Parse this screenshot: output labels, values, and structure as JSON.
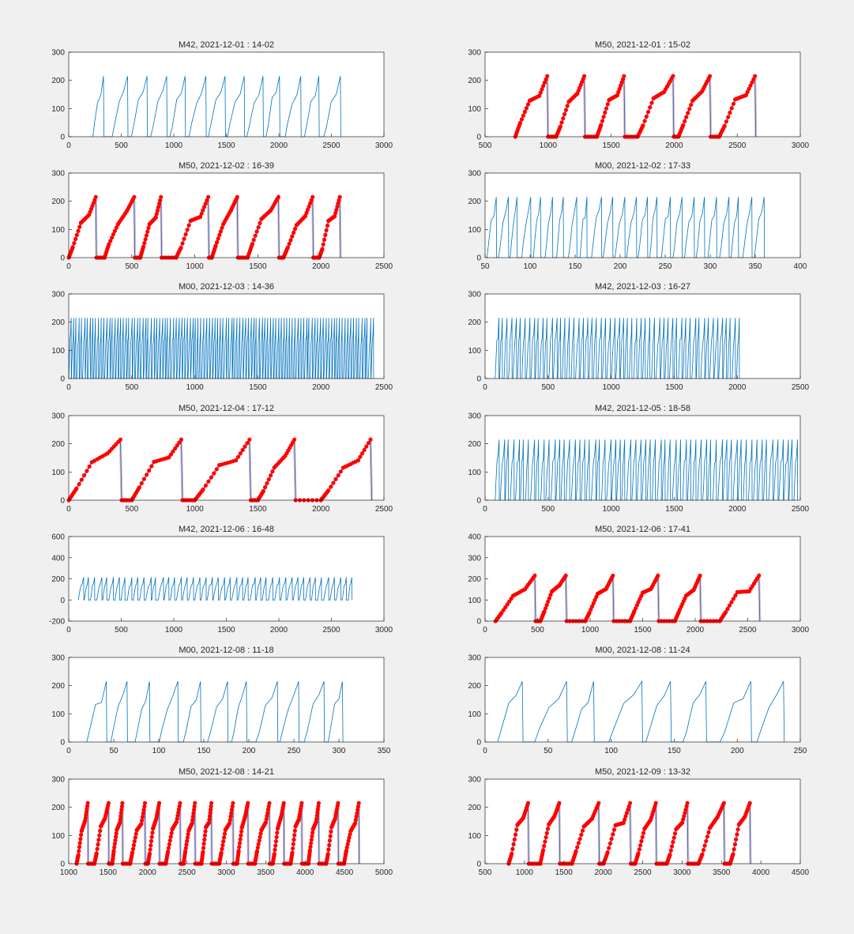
{
  "chart_data": [
    {
      "type": "line",
      "title": "M42, 2021-12-01 : 14-02",
      "xlim": [
        0,
        3000
      ],
      "ylim": [
        0,
        300
      ],
      "xticks": [
        0,
        500,
        1000,
        1500,
        2000,
        2500,
        3000
      ],
      "yticks": [
        0,
        100,
        200,
        300
      ],
      "xrange": [
        230,
        2610
      ],
      "ymax": 215,
      "cycles": 13,
      "highlight": false
    },
    {
      "type": "line",
      "title": "M50, 2021-12-01 : 15-02",
      "xlim": [
        500,
        3000
      ],
      "ylim": [
        0,
        300
      ],
      "xticks": [
        500,
        1000,
        1500,
        2000,
        2500,
        3000
      ],
      "yticks": [
        0,
        100,
        200,
        300
      ],
      "xrange": [
        740,
        2680
      ],
      "ymax": 215,
      "cycles": 6,
      "highlight": true
    },
    {
      "type": "line",
      "title": "M50, 2021-12-02 : 16-39",
      "xlim": [
        0,
        2500
      ],
      "ylim": [
        0,
        300
      ],
      "xticks": [
        0,
        500,
        1000,
        1500,
        2000,
        2500
      ],
      "yticks": [
        0,
        100,
        200,
        300
      ],
      "xrange": [
        0,
        2270
      ],
      "ymax": 215,
      "cycles": 8,
      "highlight": true
    },
    {
      "type": "line",
      "title": "M00, 2021-12-02 : 17-33",
      "xlim": [
        50,
        400
      ],
      "ylim": [
        0,
        300
      ],
      "xticks": [
        50,
        100,
        150,
        200,
        250,
        300,
        350,
        400
      ],
      "yticks": [
        0,
        100,
        200,
        300
      ],
      "xrange": [
        52,
        362
      ],
      "ymax": 215,
      "cycles": 24,
      "highlight": false
    },
    {
      "type": "line",
      "title": "M00, 2021-12-03 : 14-36",
      "xlim": [
        0,
        2500
      ],
      "ylim": [
        0,
        300
      ],
      "xticks": [
        0,
        500,
        1000,
        1500,
        2000,
        2500
      ],
      "yticks": [
        0,
        100,
        200,
        300
      ],
      "xrange": [
        0,
        2420
      ],
      "ymax": 215,
      "cycles": 110,
      "highlight": false
    },
    {
      "type": "line",
      "title": "M42, 2021-12-03 : 16-27",
      "xlim": [
        0,
        2500
      ],
      "ylim": [
        0,
        300
      ],
      "xticks": [
        0,
        500,
        1000,
        1500,
        2000,
        2500
      ],
      "yticks": [
        0,
        100,
        200,
        300
      ],
      "xrange": [
        80,
        2030
      ],
      "ymax": 215,
      "cycles": 55,
      "highlight": false
    },
    {
      "type": "line",
      "title": "M50, 2021-12-04 : 17-12",
      "xlim": [
        0,
        2500
      ],
      "ylim": [
        0,
        300
      ],
      "xticks": [
        0,
        500,
        1000,
        1500,
        2000,
        2500
      ],
      "yticks": [
        0,
        100,
        200,
        300
      ],
      "xrange": [
        0,
        2500
      ],
      "ymax": 215,
      "cycles": 5,
      "highlight": true
    },
    {
      "type": "line",
      "title": "M42, 2021-12-05 : 18-58",
      "xlim": [
        0,
        2500
      ],
      "ylim": [
        0,
        300
      ],
      "xticks": [
        0,
        500,
        1000,
        1500,
        2000,
        2500
      ],
      "yticks": [
        0,
        100,
        200,
        300
      ],
      "xrange": [
        80,
        2490
      ],
      "ymax": 215,
      "cycles": 60,
      "highlight": false
    },
    {
      "type": "line",
      "title": "M42, 2021-12-06 : 16-48",
      "xlim": [
        0,
        3000
      ],
      "ylim": [
        -200,
        600
      ],
      "xticks": [
        0,
        500,
        1000,
        1500,
        2000,
        2500,
        3000
      ],
      "yticks": [
        -200,
        0,
        200,
        400,
        600
      ],
      "xrange": [
        90,
        2720
      ],
      "ymax": 215,
      "cycles": 45,
      "highlight": false
    },
    {
      "type": "line",
      "title": "M50, 2021-12-06 : 17-41",
      "xlim": [
        0,
        3000
      ],
      "ylim": [
        0,
        400
      ],
      "xticks": [
        0,
        500,
        1000,
        1500,
        2000,
        2500,
        3000
      ],
      "yticks": [
        0,
        100,
        200,
        300,
        400
      ],
      "xrange": [
        100,
        2660
      ],
      "ymax": 215,
      "cycles": 6,
      "highlight": true
    },
    {
      "type": "line",
      "title": "M00, 2021-12-08 : 11-18",
      "xlim": [
        0,
        350
      ],
      "ylim": [
        0,
        300
      ],
      "xticks": [
        0,
        50,
        100,
        150,
        200,
        250,
        300,
        350
      ],
      "yticks": [
        0,
        100,
        200,
        300
      ],
      "xrange": [
        20,
        315
      ],
      "ymax": 215,
      "cycles": 11,
      "highlight": false
    },
    {
      "type": "line",
      "title": "M00, 2021-12-08 : 11-24",
      "xlim": [
        0,
        250
      ],
      "ylim": [
        0,
        300
      ],
      "xticks": [
        0,
        50,
        100,
        150,
        200,
        250
      ],
      "yticks": [
        0,
        100,
        200,
        300
      ],
      "xrange": [
        10,
        245
      ],
      "ymax": 215,
      "cycles": 8,
      "highlight": false
    },
    {
      "type": "line",
      "title": "M50, 2021-12-08 : 14-21",
      "xlim": [
        1000,
        5000
      ],
      "ylim": [
        0,
        300
      ],
      "xticks": [
        1000,
        1500,
        2000,
        2500,
        3000,
        3500,
        4000,
        4500,
        5000
      ],
      "yticks": [
        0,
        100,
        200,
        300
      ],
      "xrange": [
        1100,
        4720
      ],
      "ymax": 215,
      "cycles": 16,
      "highlight": true
    },
    {
      "type": "line",
      "title": "M50, 2021-12-09 : 13-32",
      "xlim": [
        500,
        4500
      ],
      "ylim": [
        0,
        300
      ],
      "xticks": [
        500,
        1000,
        1500,
        2000,
        2500,
        3000,
        3500,
        4000,
        4500
      ],
      "yticks": [
        0,
        100,
        200,
        300
      ],
      "xrange": [
        800,
        4010
      ],
      "ymax": 215,
      "cycles": 8,
      "highlight": true
    }
  ],
  "colors": {
    "line": "#0072BD",
    "highlight": "#FF0000",
    "highlight_link": "#E6B8C8",
    "background": "#F0F0F0",
    "axes": "#FFFFFF"
  }
}
